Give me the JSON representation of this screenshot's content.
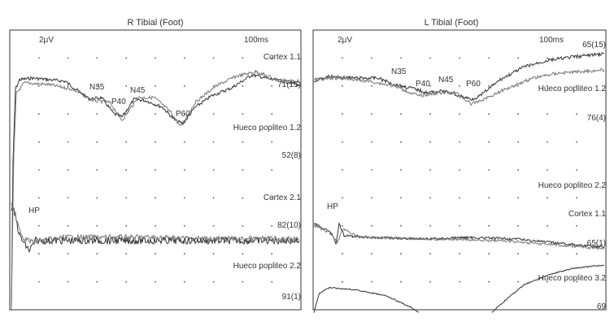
{
  "chart_data": [
    {
      "type": "line",
      "title": "R Tibial (Foot)",
      "scale_label": "2μV",
      "time_label": "100ms",
      "grid": "dotted",
      "channels": [
        {
          "label": "Cortex 1.1",
          "value": "71(15)"
        },
        {
          "label": "Hueco popliteo 1.2",
          "value": "52(8)"
        },
        {
          "label": "Cortex 2.1",
          "value": "82(10)"
        },
        {
          "label": "Hueco popliteo 2.2",
          "value": "91(1)"
        }
      ],
      "peaks": [
        "N35",
        "P40",
        "N45",
        "P60",
        "HP"
      ]
    },
    {
      "type": "line",
      "title": "L Tibial (Foot)",
      "scale_label": "2μV",
      "time_label": "100ms",
      "grid": "dotted",
      "channels": [
        {
          "label": "",
          "value": "65(15)"
        },
        {
          "label": "Hueco popliteo 1.2",
          "value": "76(4)"
        },
        {
          "label": "Hueco popliteo 2.2",
          "value": ""
        },
        {
          "label": "Cortex 1.1",
          "value": "65(1)"
        },
        {
          "label": "Hueco popliteo 3.2",
          "value": "69"
        }
      ],
      "peaks": [
        "N35",
        "P40",
        "N45",
        "P60",
        "HP"
      ]
    }
  ]
}
